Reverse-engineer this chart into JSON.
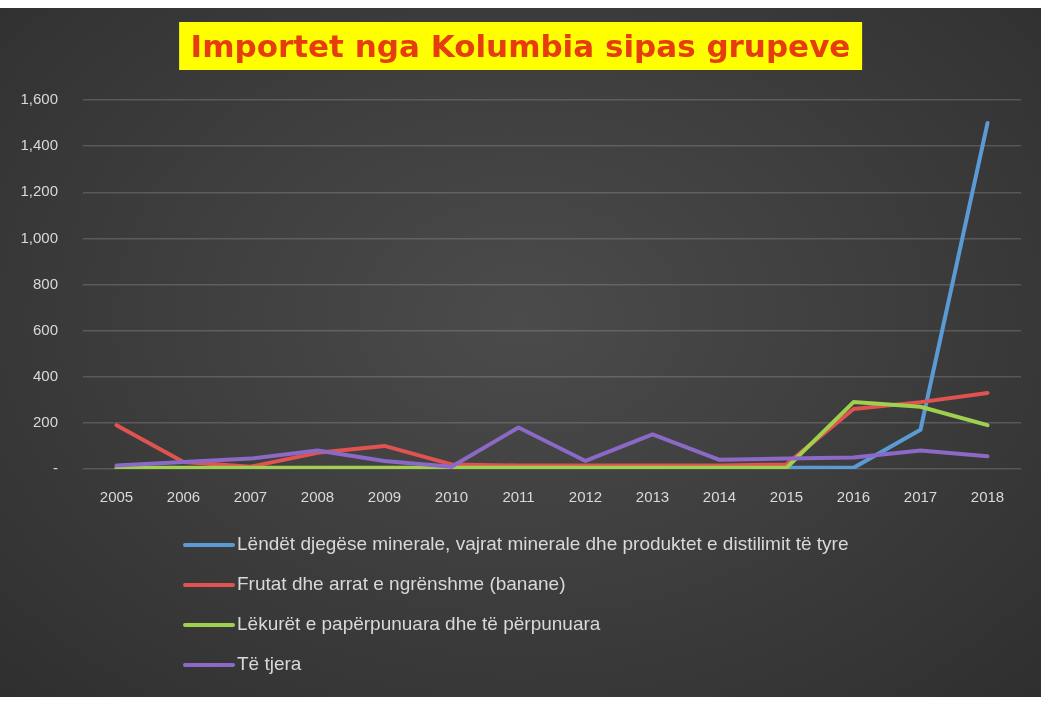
{
  "chart_data": {
    "type": "line",
    "title": "Importet nga Kolumbia sipas grupeve",
    "categories": [
      "2005",
      "2006",
      "2007",
      "2008",
      "2009",
      "2010",
      "2011",
      "2012",
      "2013",
      "2014",
      "2015",
      "2016",
      "2017",
      "2018"
    ],
    "series": [
      {
        "name": "Lëndët djegëse minerale, vajrat minerale dhe produktet e distilimit të tyre",
        "color": "#5b9bd5",
        "values": [
          null,
          null,
          null,
          null,
          null,
          null,
          null,
          null,
          null,
          null,
          5,
          5,
          170,
          1500
        ]
      },
      {
        "name": "Frutat dhe arrat e ngrënshme (banane)",
        "color": "#e05350",
        "values": [
          190,
          30,
          10,
          70,
          100,
          20,
          15,
          15,
          15,
          15,
          20,
          260,
          290,
          330
        ]
      },
      {
        "name": "Lëkurët e papërpunuara dhe të përpunuara",
        "color": "#9fd04e",
        "values": [
          5,
          5,
          5,
          5,
          5,
          5,
          5,
          5,
          5,
          5,
          5,
          290,
          270,
          190
        ]
      },
      {
        "name": "Të tjera",
        "color": "#8c69c6",
        "values": [
          15,
          30,
          45,
          80,
          35,
          10,
          180,
          35,
          150,
          40,
          45,
          50,
          80,
          55
        ]
      }
    ],
    "ylim": [
      0,
      1600
    ],
    "yticks": [
      {
        "value": 0,
        "label": "-"
      },
      200,
      400,
      600,
      800,
      {
        "value": 1000,
        "label": "1,000"
      },
      {
        "value": 1200,
        "label": "1,200"
      },
      {
        "value": 1400,
        "label": "1,400"
      },
      {
        "value": 1600,
        "label": "1,600"
      }
    ],
    "grid": "y",
    "legend": "bottom",
    "marker": "none",
    "line_style": "solid"
  }
}
